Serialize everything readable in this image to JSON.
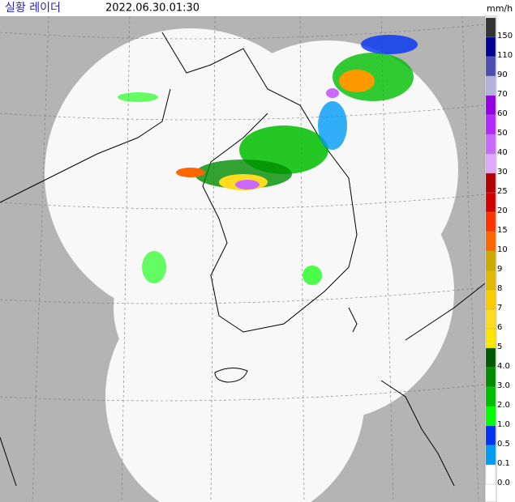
{
  "header": {
    "title": "실황 레이더",
    "timestamp": "2022.06.30.01:30",
    "unit": "mm/h"
  },
  "legend": {
    "labels": [
      "150",
      "110",
      "90",
      "70",
      "60",
      "50",
      "40",
      "30",
      "25",
      "20",
      "15",
      "10",
      "9",
      "8",
      "7",
      "6",
      "5",
      "4.0",
      "3.0",
      "2.0",
      "1.0",
      "0.5",
      "0.1",
      "0.0"
    ],
    "colors": [
      "#333333",
      "#000390",
      "#4c4eb1",
      "#b3b4de",
      "#9300e4",
      "#b329ff",
      "#c969ff",
      "#e0a9ff",
      "#b40000",
      "#d20000",
      "#ff3200",
      "#ff6600",
      "#ccaa00",
      "#e0b900",
      "#f9cd00",
      "#ffdc1f",
      "#ffe600",
      "#005a00",
      "#008c00",
      "#00be00",
      "#00ff00",
      "#0033f5",
      "#009bf5",
      "#ffffff"
    ]
  }
}
